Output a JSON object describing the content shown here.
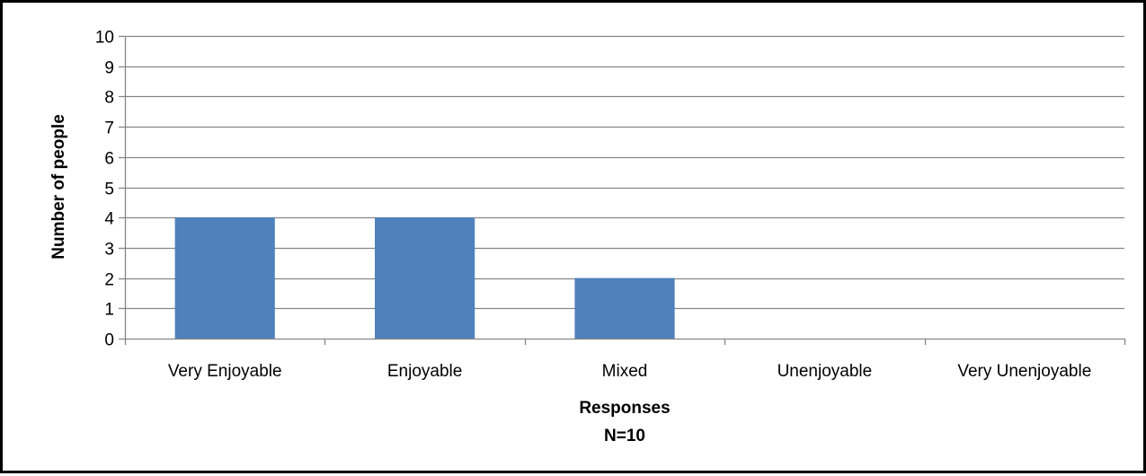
{
  "chart_data": {
    "type": "bar",
    "categories": [
      "Very Enjoyable",
      "Enjoyable",
      "Mixed",
      "Unenjoyable",
      "Very Unenjoyable"
    ],
    "values": [
      4,
      4,
      2,
      0,
      0
    ],
    "title": "",
    "xlabel": "Responses",
    "xlabel_note": "N=10",
    "ylabel": "Number of people",
    "ylim": [
      0,
      10
    ],
    "yticks": [
      0,
      1,
      2,
      3,
      4,
      5,
      6,
      7,
      8,
      9,
      10
    ],
    "grid": true,
    "legend": "none",
    "bar_color": "#4f81bd",
    "grid_color": "#868686"
  }
}
